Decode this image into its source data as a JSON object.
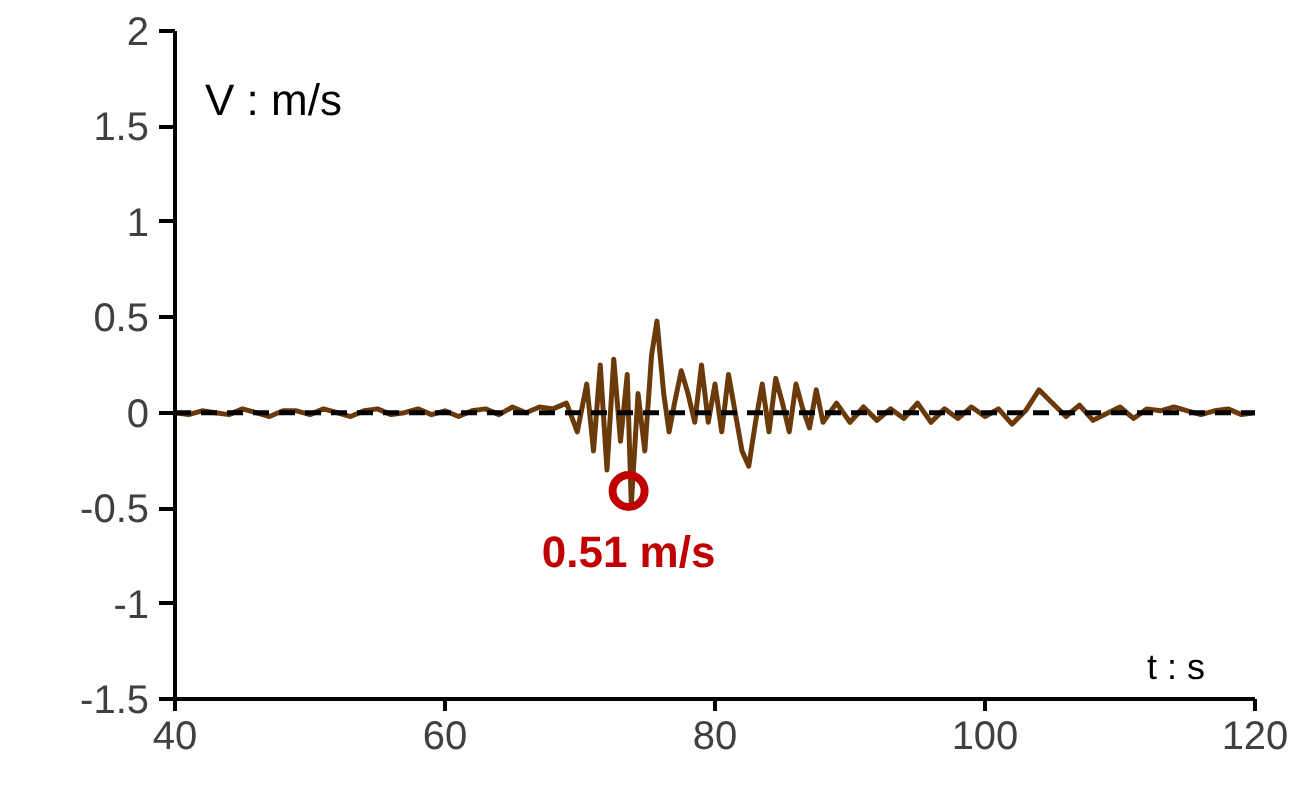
{
  "chart_data": {
    "type": "line",
    "xlabel": "t : s",
    "ylabel": "V : m/s",
    "xlim": [
      40,
      120
    ],
    "xticks": [
      40,
      60,
      80,
      100,
      120
    ],
    "ylim": [
      -1.5,
      2
    ],
    "yticks": [
      -1.5,
      -1,
      -0.5,
      0,
      0.5,
      1,
      1.5,
      2
    ],
    "grid": false,
    "marker": "none",
    "line_style": "solid",
    "ref_lines": [
      {
        "axis": "y",
        "value": 0,
        "color": "#000000",
        "line_style": "dashed"
      }
    ],
    "annotations": [
      {
        "text": "0.51 m/s",
        "x": 73.6,
        "y": -0.41
      }
    ],
    "series": [
      {
        "color": "#6b3a0a",
        "x": [
          40,
          41,
          42,
          43,
          44,
          45,
          46,
          47,
          48,
          49,
          50,
          51,
          52,
          53,
          54,
          55,
          56,
          57,
          58,
          59,
          60,
          61,
          62,
          63,
          64,
          65,
          66,
          67,
          68,
          69,
          69.8,
          70.5,
          71,
          71.5,
          72,
          72.5,
          73,
          73.5,
          73.8,
          74.3,
          74.8,
          75.3,
          75.7,
          76.2,
          76.6,
          77,
          77.5,
          78,
          78.5,
          79,
          79.5,
          80,
          80.5,
          81,
          81.5,
          82,
          82.5,
          83,
          83.5,
          84,
          84.5,
          85,
          85.5,
          86,
          86.5,
          87,
          87.5,
          88,
          89,
          90,
          91,
          92,
          93,
          94,
          95,
          96,
          97,
          98,
          99,
          100,
          101,
          102,
          103,
          104,
          105,
          106,
          107,
          108,
          110,
          111,
          112,
          113,
          114,
          115,
          116,
          117,
          118,
          119,
          120
        ],
        "values": [
          0,
          -0.01,
          0.01,
          0,
          -0.01,
          0.02,
          0,
          -0.02,
          0.01,
          0.01,
          -0.01,
          0.02,
          0,
          -0.02,
          0.01,
          0.02,
          -0.01,
          0,
          0.02,
          -0.01,
          0.01,
          -0.02,
          0.01,
          0.02,
          -0.01,
          0.03,
          0,
          0.03,
          0.02,
          0.05,
          -0.1,
          0.15,
          -0.2,
          0.25,
          -0.3,
          0.28,
          -0.15,
          0.2,
          -0.48,
          0.1,
          -0.2,
          0.3,
          0.48,
          0.1,
          -0.1,
          0.05,
          0.22,
          0.1,
          -0.05,
          0.25,
          -0.05,
          0.15,
          -0.1,
          0.2,
          0,
          -0.2,
          -0.28,
          -0.05,
          0.15,
          -0.1,
          0.18,
          0.05,
          -0.1,
          0.15,
          0.02,
          -0.08,
          0.12,
          -0.05,
          0.05,
          -0.05,
          0.03,
          -0.04,
          0.02,
          -0.03,
          0.05,
          -0.05,
          0.02,
          -0.03,
          0.03,
          -0.02,
          0.02,
          -0.06,
          0.01,
          0.12,
          0.05,
          -0.02,
          0.04,
          -0.04,
          0.03,
          -0.03,
          0.02,
          0.01,
          0.03,
          0.01,
          -0.01,
          0.01,
          0.02,
          -0.01,
          0
        ]
      }
    ]
  }
}
